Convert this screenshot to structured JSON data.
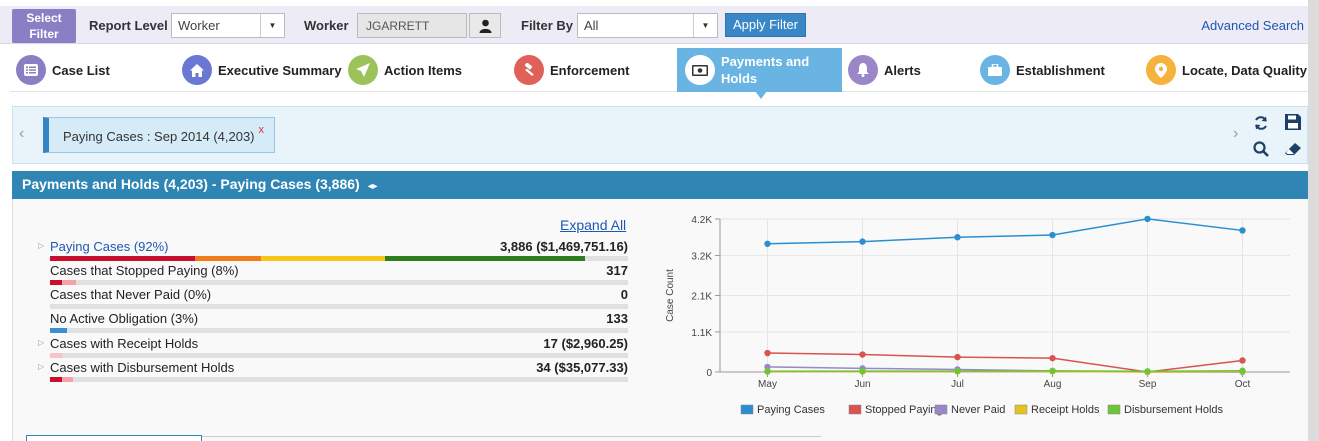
{
  "filter_bar": {
    "select_filter_line1": "Select",
    "select_filter_line2": "Filter",
    "report_level_label": "Report Level",
    "report_level_value": "Worker",
    "worker_label": "Worker",
    "worker_value": "JGARRETT",
    "filter_by_label": "Filter By",
    "filter_by_value": "All",
    "apply_button": "Apply Filter",
    "advanced_search": "Advanced Search"
  },
  "tabs": [
    {
      "label": "Case List",
      "icon": "list-icon",
      "color": "#8a7fc4"
    },
    {
      "label": "Executive Summary",
      "icon": "home-icon",
      "color": "#6a78d4"
    },
    {
      "label": "Action Items",
      "icon": "send-icon",
      "color": "#9cc35a"
    },
    {
      "label": "Enforcement",
      "icon": "gavel-icon",
      "color": "#e0605a"
    },
    {
      "label_line1": "Payments and",
      "label_line2": "Holds",
      "icon": "money-icon",
      "active": true
    },
    {
      "label": "Alerts",
      "icon": "bell-icon",
      "color": "#9a86c9"
    },
    {
      "label": "Establishment",
      "icon": "briefcase-icon",
      "color": "#6ab4e3"
    },
    {
      "label": "Locate, Data Quality",
      "icon": "map-pin-icon",
      "color": "#f5b23c"
    }
  ],
  "chip": {
    "label": "Paying Cases : Sep 2014 (4,203)",
    "close": "x"
  },
  "section": {
    "title": "Payments and Holds (4,203)",
    "subtitle": " - Paying Cases (3,886)",
    "arrows": "◂▸"
  },
  "expand_all": "Expand All",
  "rows": [
    {
      "label": "Paying Cases (92%)",
      "value": "3,886 ($1,469,751.16)",
      "link": true,
      "expandable": true
    },
    {
      "label": "Cases that Stopped Paying (8%)",
      "value": "317"
    },
    {
      "label": "Cases that Never Paid (0%)",
      "value": "0"
    },
    {
      "label": "No Active Obligation (3%)",
      "value": "133"
    },
    {
      "label": "Cases with Receipt Holds",
      "value": "17 ($2,960.25)",
      "expandable": true
    },
    {
      "label": "Cases with Disbursement Holds",
      "value": "34 ($35,077.33)",
      "expandable": true
    }
  ],
  "progress": {
    "paying_segments": [
      {
        "color": "#c8102e",
        "fraction": 0.25
      },
      {
        "color": "#f07d1a",
        "fraction": 0.115
      },
      {
        "color": "#f5c518",
        "fraction": 0.215
      },
      {
        "color": "#2e7d1f",
        "fraction": 0.345
      }
    ],
    "stopped_segments": [
      {
        "color": "#c8102e",
        "fraction": 0.02
      },
      {
        "color": "#f6a0aa",
        "fraction": 0.025
      }
    ],
    "never_segments": [],
    "no_obligation_segments": [
      {
        "color": "#3a8fd0",
        "fraction": 0.03
      }
    ],
    "receipt_segments": [
      {
        "color": "#f6c5cb",
        "fraction": 0.02
      }
    ],
    "disbursement_segments": [
      {
        "color": "#c8102e",
        "fraction": 0.02
      },
      {
        "color": "#f6a0aa",
        "fraction": 0.02
      }
    ]
  },
  "chart_data": {
    "type": "line",
    "categories": [
      "May",
      "Jun",
      "Jul",
      "Aug",
      "Sep",
      "Oct"
    ],
    "ylabel": "Case Count",
    "ylim": [
      0,
      4200
    ],
    "yticks": [
      0,
      1100,
      2100,
      3200,
      4200
    ],
    "ytick_labels": [
      "0",
      "1.1K",
      "2.1K",
      "3.2K",
      "4.2K"
    ],
    "grid": true,
    "legend_position": "bottom",
    "series": [
      {
        "name": "Paying Cases",
        "color": "#2a8fd0",
        "values": [
          3520,
          3580,
          3700,
          3760,
          4203,
          3886
        ]
      },
      {
        "name": "Stopped Paying",
        "color": "#d9534f",
        "values": [
          520,
          480,
          410,
          380,
          0,
          317
        ]
      },
      {
        "name": "Never Paid",
        "color": "#9a86c9",
        "values": [
          140,
          100,
          70,
          30,
          0,
          0
        ]
      },
      {
        "name": "Receipt Holds",
        "color": "#e6c220",
        "values": [
          10,
          10,
          15,
          15,
          0,
          17
        ]
      },
      {
        "name": "Disbursement Holds",
        "color": "#6fc43a",
        "values": [
          20,
          25,
          25,
          30,
          20,
          34
        ]
      }
    ]
  }
}
